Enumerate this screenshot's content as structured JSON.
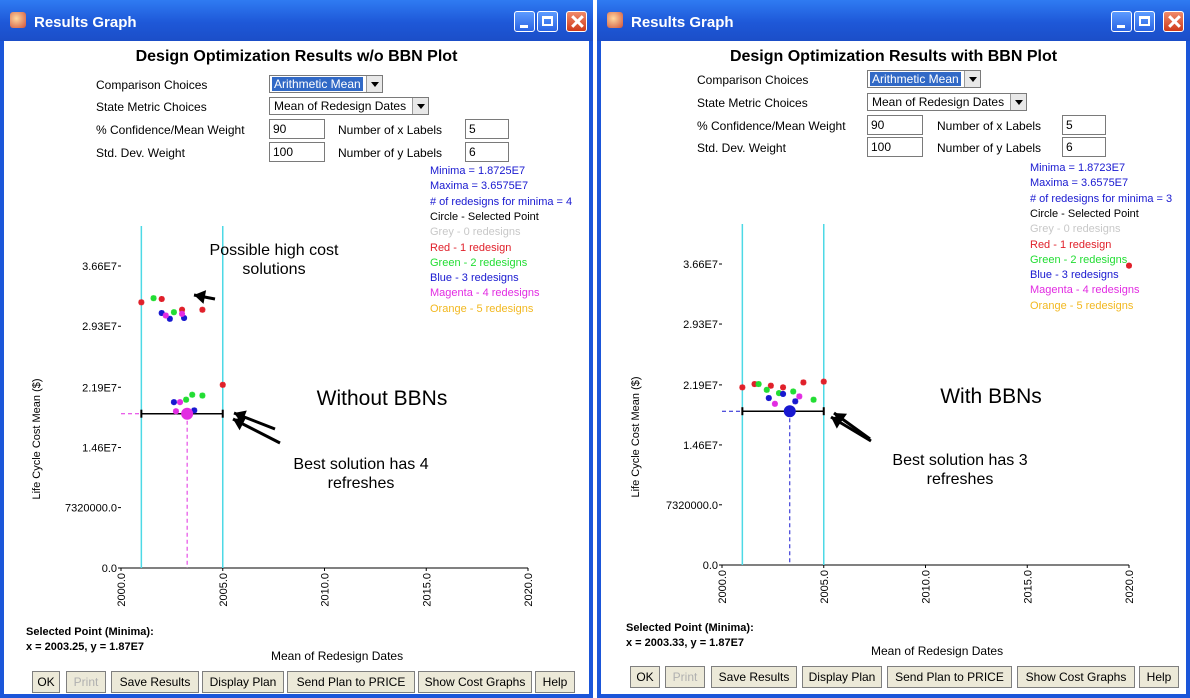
{
  "colors": {
    "title_bar": "#1e58d8",
    "vertical_line": "#4dd9e6",
    "blue_text": "#1818d0",
    "grey": "#c8c8c8",
    "red": "#e0202a",
    "green": "#22dd33",
    "blue": "#1818d0",
    "magenta": "#e22ce2",
    "orange": "#f2b820"
  },
  "windows": [
    {
      "title": "Results Graph",
      "heading": "Design Optimization Results w/o BBN Plot",
      "comparison_label": "Comparison Choices",
      "comparison_value": "Arithmetic Mean",
      "state_metric_label": "State Metric Choices",
      "state_metric_value": "Mean of Redesign Dates",
      "confidence_label": "% Confidence/Mean Weight",
      "confidence_value": "90",
      "num_x_label": "Number of x Labels",
      "num_x_value": "5",
      "stddev_label": "Std. Dev. Weight",
      "stddev_value": "100",
      "num_y_label": "Number of y Labels",
      "num_y_value": "6",
      "minima": "Minima = 1.8725E7",
      "maxima": "Maxima = 3.6575E7",
      "redesigns_minima": "# of redesigns for minima = 4",
      "legend": [
        {
          "text": "Circle    -  Selected Point",
          "color": "#000000"
        },
        {
          "text": "Grey     -  0 redesigns",
          "color": "#c8c8c8"
        },
        {
          "text": "Red      -  1 redesign",
          "color": "#e0202a"
        },
        {
          "text": "Green    -  2 redesigns",
          "color": "#22dd33"
        },
        {
          "text": "Blue     -  3 redesigns",
          "color": "#1818d0"
        },
        {
          "text": "Magenta  -  4 redesigns",
          "color": "#e22ce2"
        },
        {
          "text": "Orange   -  5 redesigns",
          "color": "#f2b820"
        }
      ],
      "annotation_top_line1": "Possible high cost",
      "annotation_top_line2": "solutions",
      "annotation_middle": "Without BBNs",
      "annotation_bottom_line1": "Best solution has 4",
      "annotation_bottom_line2": "refreshes",
      "selected_point_label": "Selected Point (Minima):",
      "selected_point_value": "x = 2003.25, y = 1.87E7",
      "buttons": [
        "OK",
        "Print",
        "Save Results",
        "Display Plan",
        "Send Plan to PRICE",
        "Show Cost Graphs",
        "Help"
      ]
    },
    {
      "title": "Results Graph",
      "heading": "Design Optimization Results with BBN Plot",
      "comparison_label": "Comparison Choices",
      "comparison_value": "Arithmetic Mean",
      "state_metric_label": "State Metric Choices",
      "state_metric_value": "Mean of Redesign Dates",
      "confidence_label": "% Confidence/Mean Weight",
      "confidence_value": "90",
      "num_x_label": "Number of x Labels",
      "num_x_value": "5",
      "stddev_label": "Std. Dev. Weight",
      "stddev_value": "100",
      "num_y_label": "Number of y Labels",
      "num_y_value": "6",
      "minima": "Minima = 1.8723E7",
      "maxima": "Maxima = 3.6575E7",
      "redesigns_minima": "# of redesigns for minima = 3",
      "legend": [
        {
          "text": "Circle    -  Selected Point",
          "color": "#000000"
        },
        {
          "text": "Grey     -  0 redesigns",
          "color": "#c8c8c8"
        },
        {
          "text": "Red      -  1 redesign",
          "color": "#e0202a"
        },
        {
          "text": "Green    -  2 redesigns",
          "color": "#22dd33"
        },
        {
          "text": "Blue     -  3 redesigns",
          "color": "#1818d0"
        },
        {
          "text": "Magenta  -  4 redesigns",
          "color": "#e22ce2"
        },
        {
          "text": "Orange   -  5 redesigns",
          "color": "#f2b820"
        }
      ],
      "annotation_middle": "With BBNs",
      "annotation_bottom_line1": "Best solution has 3",
      "annotation_bottom_line2": "refreshes",
      "selected_point_label": "Selected Point (Minima):",
      "selected_point_value": "x = 2003.33, y = 1.87E7",
      "buttons": [
        "OK",
        "Print",
        "Save Results",
        "Display Plan",
        "Send Plan to PRICE",
        "Show Cost Graphs",
        "Help"
      ]
    }
  ],
  "chart_data": [
    {
      "type": "scatter",
      "title": "",
      "xlabel": "Mean of Redesign Dates",
      "ylabel": "Life Cycle Cost Mean ($)",
      "x_tick_labels": [
        "2000.0",
        "2005.0",
        "2010.0",
        "2015.0",
        "2020.0"
      ],
      "y_tick_labels": [
        "0.0",
        "7320000.0",
        "1.46E7",
        "2.19E7",
        "2.93E7",
        "3.66E7"
      ],
      "xlim": [
        2000,
        2020
      ],
      "ylim": [
        0,
        36600000
      ],
      "vertical_lines": [
        2001,
        2005
      ],
      "selected_point": {
        "x": 2003.25,
        "y": 18700000
      },
      "series": [
        {
          "name": "Red",
          "color": "#e0202a",
          "points": [
            [
              2001.0,
              32200000
            ],
            [
              2002.0,
              32600000
            ],
            [
              2003.0,
              31300000
            ],
            [
              2004.0,
              31300000
            ],
            [
              2005.0,
              22200000
            ]
          ]
        },
        {
          "name": "Green",
          "color": "#22dd33",
          "points": [
            [
              2001.6,
              32700000
            ],
            [
              2002.6,
              31000000
            ],
            [
              2003.2,
              20400000
            ],
            [
              2003.5,
              21000000
            ],
            [
              2004.0,
              20900000
            ]
          ]
        },
        {
          "name": "Blue",
          "color": "#1818d0",
          "points": [
            [
              2002.0,
              30900000
            ],
            [
              2002.4,
              30200000
            ],
            [
              2003.1,
              30300000
            ],
            [
              2002.6,
              20100000
            ],
            [
              2003.6,
              19100000
            ]
          ]
        },
        {
          "name": "Magenta",
          "color": "#e22ce2",
          "points": [
            [
              2002.2,
              30600000
            ],
            [
              2003.0,
              30800000
            ],
            [
              2002.9,
              20100000
            ],
            [
              2002.7,
              19000000
            ]
          ]
        }
      ]
    },
    {
      "type": "scatter",
      "title": "",
      "xlabel": "Mean of Redesign Dates",
      "ylabel": "Life Cycle Cost Mean ($)",
      "x_tick_labels": [
        "2000.0",
        "2005.0",
        "2010.0",
        "2015.0",
        "2020.0"
      ],
      "y_tick_labels": [
        "0.0",
        "7320000.0",
        "1.46E7",
        "2.19E7",
        "2.93E7",
        "3.66E7"
      ],
      "xlim": [
        2000,
        2020
      ],
      "ylim": [
        0,
        36600000
      ],
      "vertical_lines": [
        2001,
        2005
      ],
      "selected_point": {
        "x": 2003.33,
        "y": 18700000
      },
      "series": [
        {
          "name": "Red",
          "color": "#e0202a",
          "points": [
            [
              2001.0,
              21600000
            ],
            [
              2001.6,
              22000000
            ],
            [
              2002.4,
              21800000
            ],
            [
              2003.0,
              21600000
            ],
            [
              2004.0,
              22200000
            ],
            [
              2005.0,
              22300000
            ],
            [
              2020.0,
              36400000
            ]
          ]
        },
        {
          "name": "Green",
          "color": "#22dd33",
          "points": [
            [
              2001.8,
              22000000
            ],
            [
              2002.2,
              21300000
            ],
            [
              2002.8,
              20900000
            ],
            [
              2003.5,
              21100000
            ],
            [
              2004.5,
              20100000
            ]
          ]
        },
        {
          "name": "Blue",
          "color": "#1818d0",
          "points": [
            [
              2002.3,
              20300000
            ],
            [
              2003.0,
              20800000
            ],
            [
              2003.6,
              19900000
            ],
            [
              2003.3,
              18700000
            ]
          ]
        },
        {
          "name": "Magenta",
          "color": "#e22ce2",
          "points": [
            [
              2002.6,
              19600000
            ],
            [
              2003.8,
              20500000
            ]
          ]
        }
      ]
    }
  ]
}
